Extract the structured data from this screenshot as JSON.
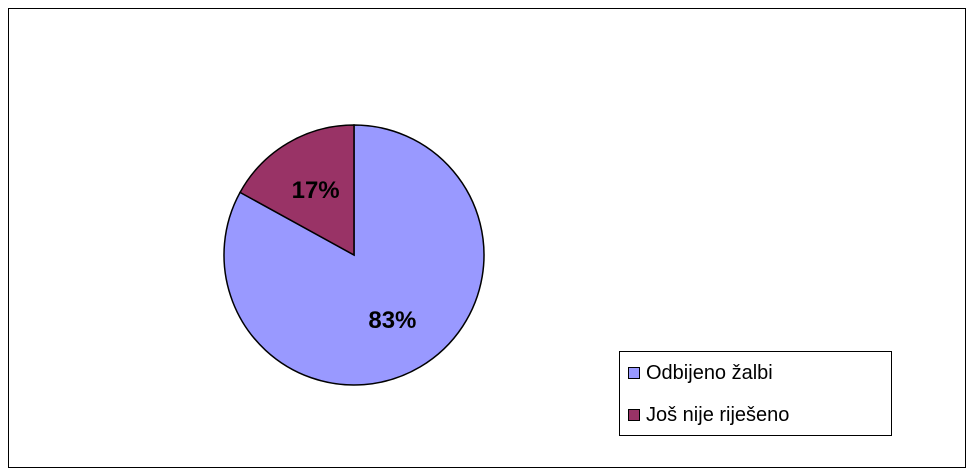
{
  "chart_data": {
    "type": "pie",
    "slices": [
      {
        "label": "Odbijeno žalbi",
        "value": 83,
        "display": "83%",
        "color": "#9999FF"
      },
      {
        "label": "Još nije riješeno",
        "value": 17,
        "display": "17%",
        "color": "#993366"
      }
    ],
    "legend_position": "bottom-right",
    "border_color": "#000000"
  }
}
